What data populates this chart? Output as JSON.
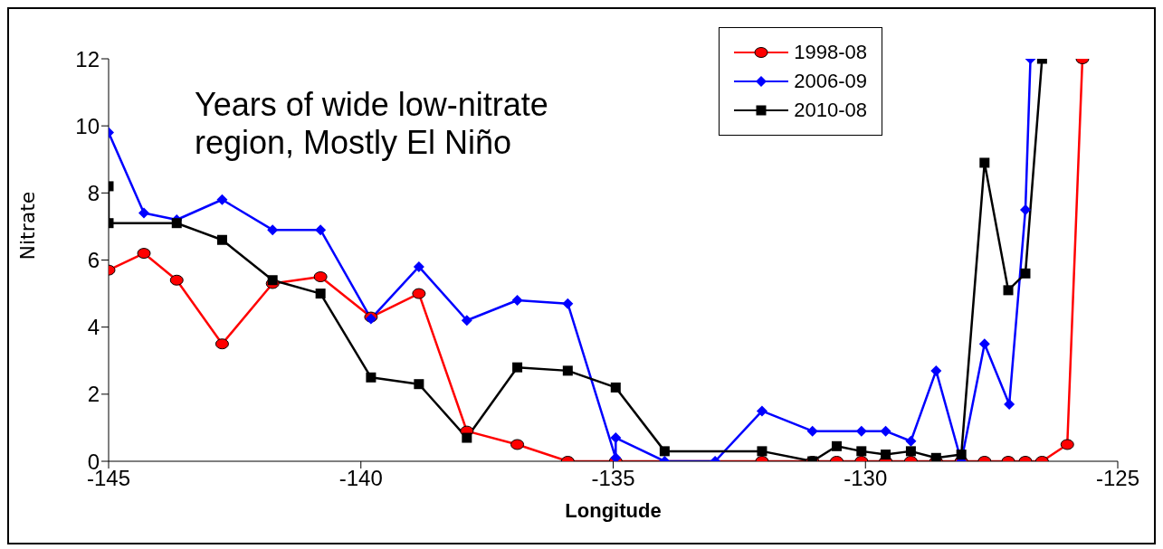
{
  "chart_data": {
    "type": "line",
    "xlabel": "Longitude",
    "ylabel": "Nitrate",
    "xlim": [
      -145,
      -125
    ],
    "xticks": [
      -145,
      -140,
      -135,
      -130,
      -125
    ],
    "ylim": [
      0,
      12
    ],
    "yticks": [
      0,
      2,
      4,
      6,
      8,
      10,
      12
    ],
    "legend": "top right",
    "annotations": [
      "Years of wide low-nitrate region, Mostly El Niño"
    ],
    "series": [
      {
        "name": "1998-08",
        "color": "#ff0000",
        "marker": "circle",
        "x": [
          -145,
          -144.3,
          -143.65,
          -142.75,
          -141.75,
          -140.8,
          -139.8,
          -138.85,
          -137.9,
          -136.9,
          -135.9,
          -134.95,
          -132.05,
          -131.05,
          -130.57,
          -130.08,
          -129.6,
          -129.1,
          -128.6,
          -128.1,
          -127.64,
          -127.17,
          -126.83,
          -126.5,
          -126.0,
          -125.7
        ],
        "values": [
          5.7,
          6.2,
          5.4,
          3.5,
          5.3,
          5.5,
          4.3,
          5.0,
          0.9,
          0.5,
          0,
          0,
          0,
          0,
          0,
          0,
          0,
          0,
          0,
          0,
          0,
          0,
          0,
          0,
          0.5,
          12
        ]
      },
      {
        "name": "2006-09",
        "color": "#0000ff",
        "marker": "diamond",
        "x": [
          -145,
          -144.3,
          -143.65,
          -142.75,
          -141.75,
          -140.8,
          -139.8,
          -138.85,
          -137.9,
          -136.9,
          -135.9,
          -134.95,
          -134.95,
          -133.98,
          -132.98,
          -132.05,
          -131.05,
          -130.08,
          -129.6,
          -129.1,
          -128.6,
          -128.1,
          -127.64,
          -127.15,
          -126.83,
          -126.73
        ],
        "values": [
          9.8,
          7.4,
          7.2,
          7.8,
          6.9,
          6.9,
          4.25,
          5.8,
          4.2,
          4.8,
          4.7,
          0.1,
          0.7,
          0,
          0,
          1.5,
          0.9,
          0.9,
          0.9,
          0.6,
          2.7,
          0,
          3.5,
          1.7,
          7.5,
          12
        ]
      },
      {
        "name": "2010-08",
        "color": "#000000",
        "marker": "square",
        "x": [
          -145,
          -145,
          -143.65,
          -142.75,
          -141.75,
          -140.8,
          -139.8,
          -138.85,
          -137.9,
          -136.9,
          -135.9,
          -134.95,
          -133.98,
          -132.05,
          -131.05,
          -130.57,
          -130.08,
          -129.6,
          -129.1,
          -128.6,
          -128.1,
          -127.64,
          -127.17,
          -126.83,
          -126.5
        ],
        "values": [
          8.2,
          7.1,
          7.1,
          6.6,
          5.4,
          5.0,
          2.5,
          2.3,
          0.7,
          2.8,
          2.7,
          2.2,
          0.3,
          0.3,
          0,
          0.45,
          0.3,
          0.2,
          0.3,
          0.1,
          0.2,
          8.9,
          5.1,
          5.6,
          12
        ]
      }
    ]
  }
}
